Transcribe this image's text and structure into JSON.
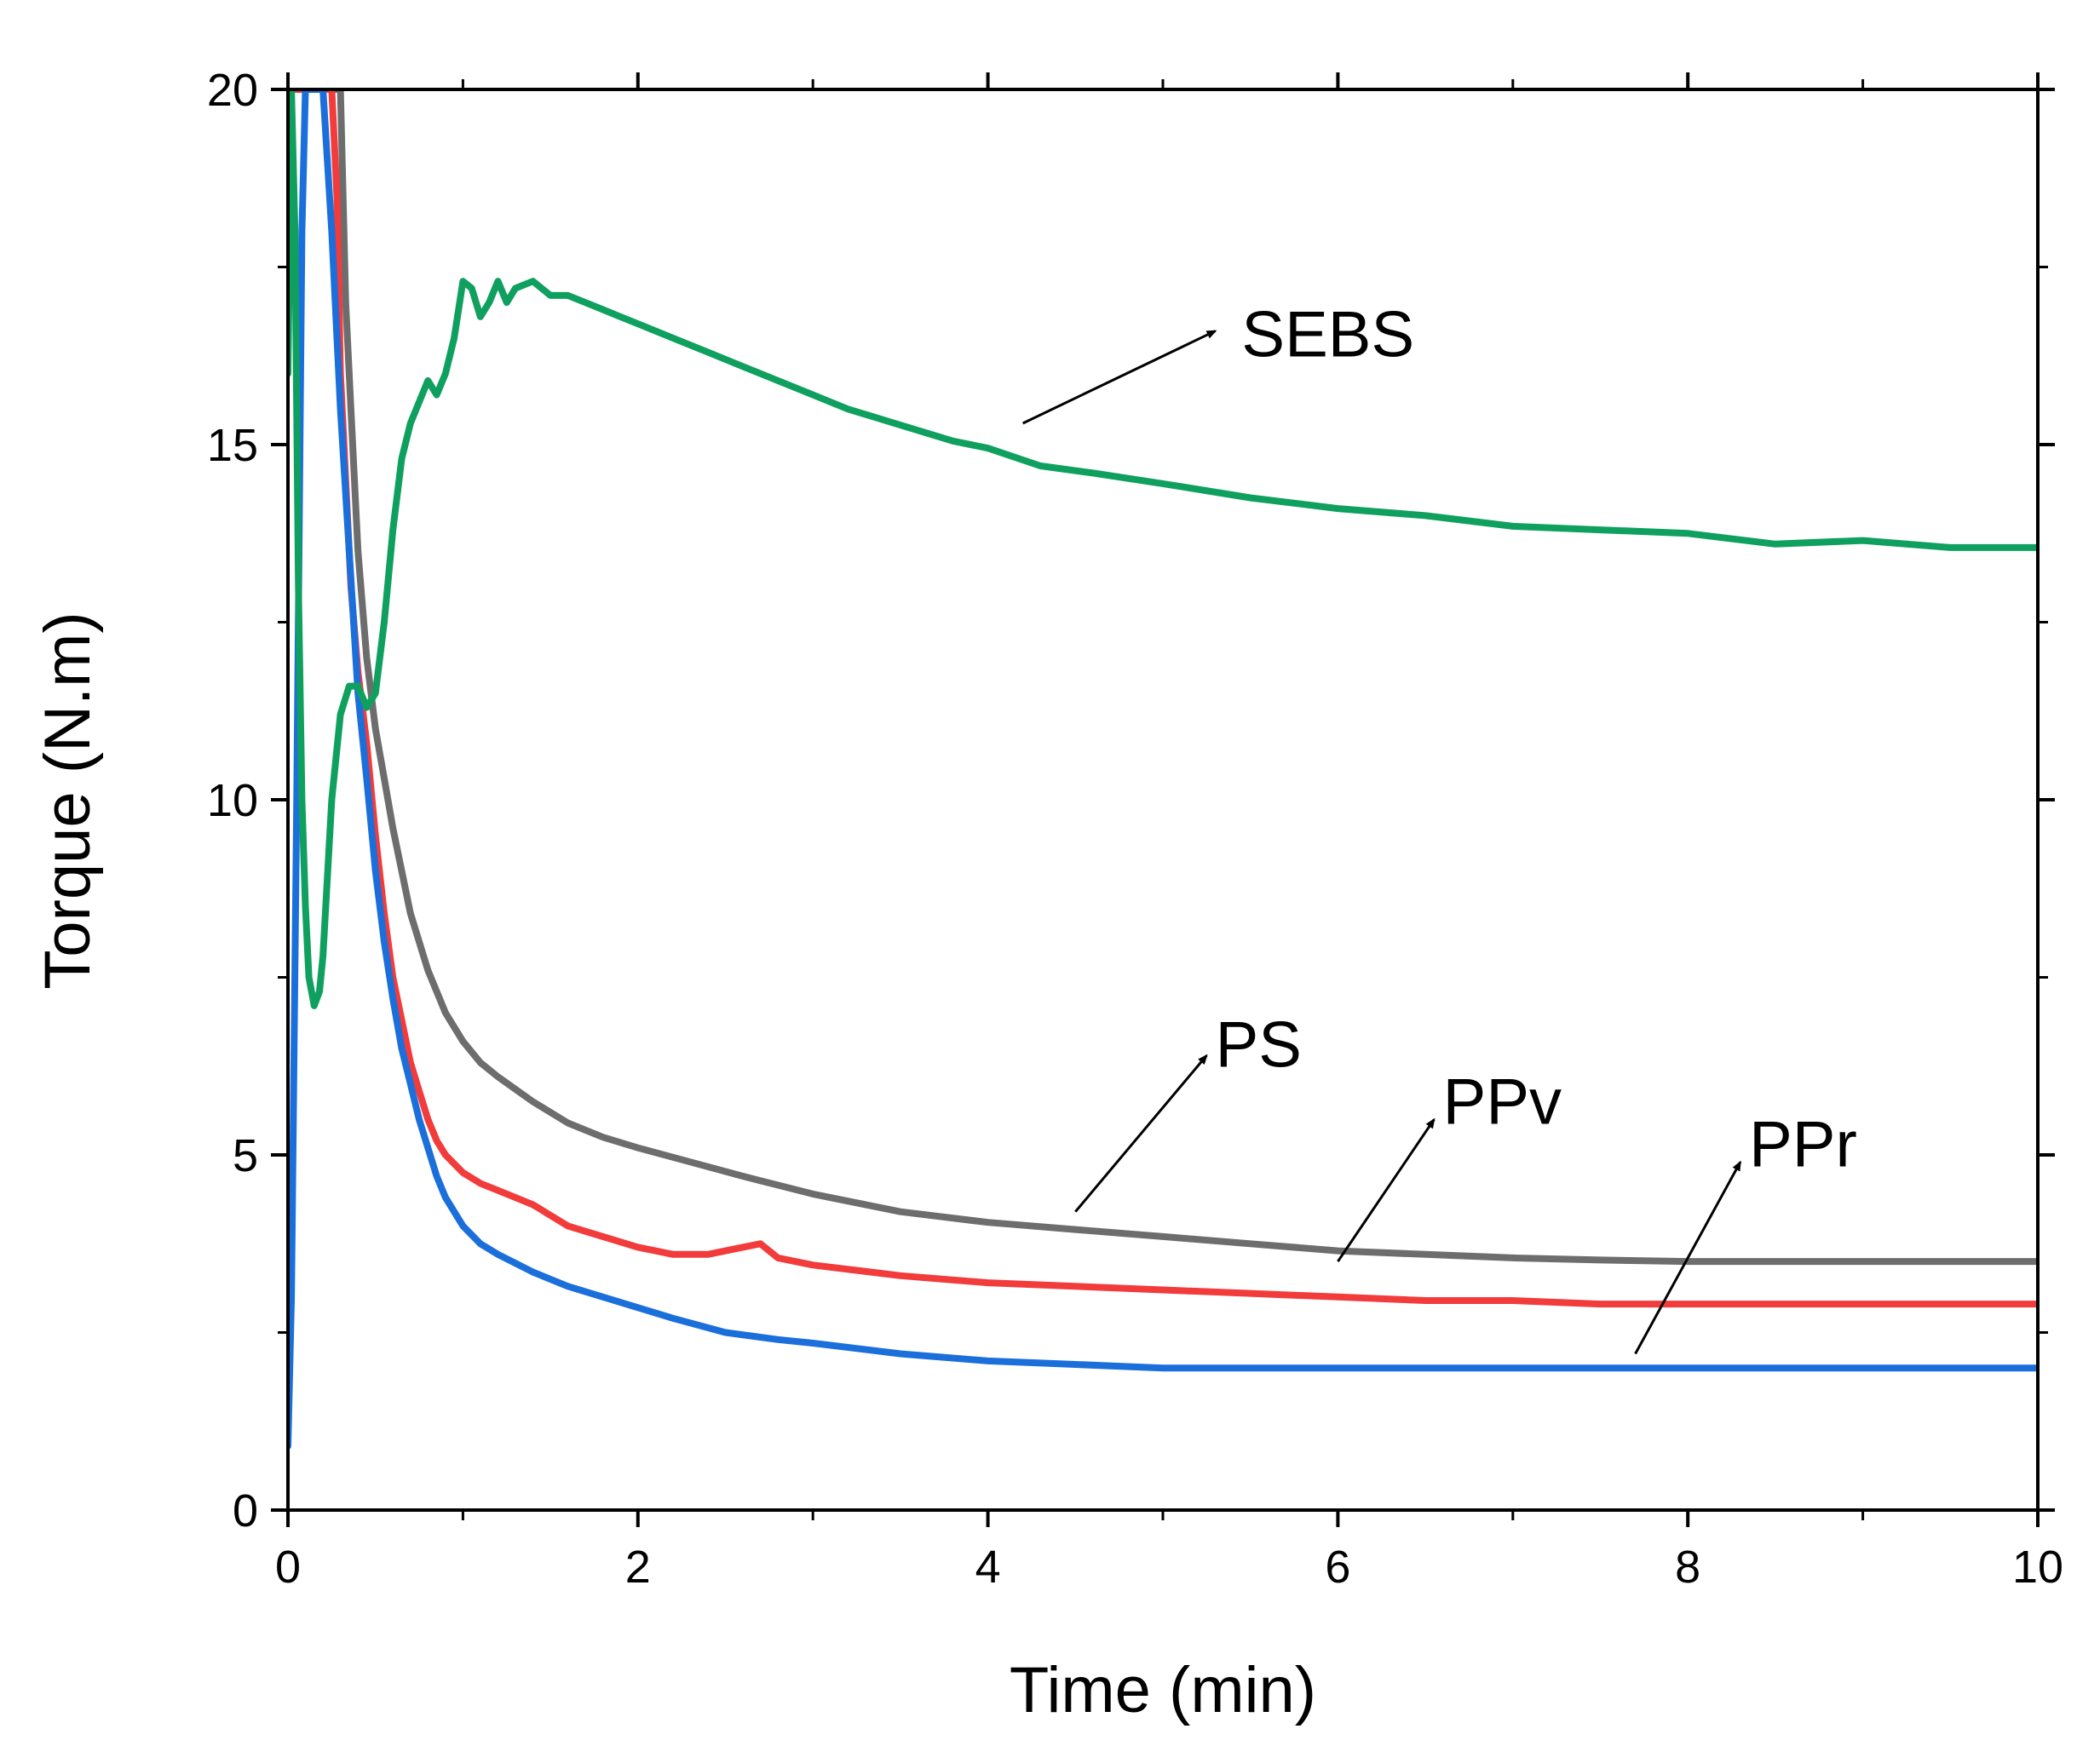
{
  "chart_data": {
    "type": "line",
    "title": "",
    "xlabel": "Time (min)",
    "ylabel": "Torque (N.m)",
    "xlim": [
      0,
      10
    ],
    "ylim": [
      0,
      20
    ],
    "xticks": [
      0,
      2,
      4,
      6,
      8,
      10
    ],
    "yticks": [
      0,
      5,
      10,
      15,
      20
    ],
    "grid": false,
    "legend": "none",
    "series": [
      {
        "name": "SEBS",
        "color": "#0fa05f",
        "x": [
          0.0,
          0.02,
          0.04,
          0.06,
          0.08,
          0.1,
          0.12,
          0.15,
          0.18,
          0.2,
          0.25,
          0.3,
          0.35,
          0.4,
          0.45,
          0.5,
          0.55,
          0.6,
          0.65,
          0.7,
          0.75,
          0.8,
          0.85,
          0.9,
          0.95,
          1.0,
          1.05,
          1.1,
          1.15,
          1.2,
          1.25,
          1.3,
          1.4,
          1.5,
          1.6,
          1.7,
          1.8,
          1.9,
          2.0,
          2.2,
          2.4,
          2.6,
          2.8,
          3.0,
          3.2,
          3.4,
          3.6,
          3.8,
          4.0,
          4.3,
          4.6,
          5.0,
          5.5,
          6.0,
          6.5,
          7.0,
          7.5,
          8.0,
          8.5,
          9.0,
          9.5,
          10.0
        ],
        "values": [
          16.0,
          20.0,
          18.0,
          13.0,
          10.0,
          8.5,
          7.5,
          7.1,
          7.3,
          7.8,
          10.0,
          11.2,
          11.6,
          11.6,
          11.3,
          11.5,
          12.5,
          13.8,
          14.8,
          15.3,
          15.6,
          15.9,
          15.7,
          16.0,
          16.5,
          17.3,
          17.2,
          16.8,
          17.0,
          17.3,
          17.0,
          17.2,
          17.3,
          17.1,
          17.1,
          17.0,
          16.9,
          16.8,
          16.7,
          16.5,
          16.3,
          16.1,
          15.9,
          15.7,
          15.5,
          15.35,
          15.2,
          15.05,
          14.95,
          14.7,
          14.6,
          14.45,
          14.25,
          14.1,
          14.0,
          13.85,
          13.8,
          13.75,
          13.6,
          13.65,
          13.55,
          13.55
        ]
      },
      {
        "name": "PS",
        "color": "#6d6d6d",
        "x": [
          0.0,
          0.05,
          0.1,
          0.15,
          0.2,
          0.25,
          0.3,
          0.33,
          0.36,
          0.4,
          0.45,
          0.5,
          0.55,
          0.6,
          0.65,
          0.7,
          0.8,
          0.9,
          1.0,
          1.1,
          1.2,
          1.4,
          1.6,
          1.8,
          2.0,
          2.3,
          2.6,
          3.0,
          3.5,
          4.0,
          4.5,
          5.0,
          5.5,
          6.0,
          6.5,
          7.0,
          7.5,
          8.0,
          8.5,
          9.0,
          9.5,
          10.0
        ],
        "values": [
          20.0,
          20.0,
          20.0,
          20.0,
          20.0,
          20.0,
          20.0,
          17.0,
          15.5,
          13.5,
          12.0,
          11.0,
          10.3,
          9.6,
          9.0,
          8.4,
          7.6,
          7.0,
          6.6,
          6.3,
          6.1,
          5.75,
          5.45,
          5.25,
          5.1,
          4.9,
          4.7,
          4.45,
          4.2,
          4.05,
          3.95,
          3.85,
          3.75,
          3.65,
          3.6,
          3.55,
          3.52,
          3.5,
          3.5,
          3.5,
          3.5,
          3.5
        ]
      },
      {
        "name": "PPv",
        "color": "#f23b3b",
        "x": [
          0.0,
          0.05,
          0.1,
          0.15,
          0.2,
          0.25,
          0.28,
          0.3,
          0.33,
          0.36,
          0.4,
          0.45,
          0.5,
          0.55,
          0.6,
          0.65,
          0.7,
          0.75,
          0.8,
          0.85,
          0.9,
          1.0,
          1.1,
          1.2,
          1.4,
          1.6,
          1.8,
          2.0,
          2.2,
          2.4,
          2.6,
          2.7,
          2.8,
          3.0,
          3.5,
          4.0,
          4.5,
          5.0,
          5.5,
          6.0,
          6.5,
          7.0,
          7.5,
          8.0,
          8.5,
          9.0,
          9.5,
          10.0
        ],
        "values": [
          20.0,
          20.0,
          20.0,
          20.0,
          20.0,
          20.0,
          18.5,
          16.0,
          14.5,
          13.0,
          11.8,
          10.8,
          9.5,
          8.4,
          7.5,
          6.9,
          6.3,
          5.9,
          5.5,
          5.2,
          5.0,
          4.75,
          4.6,
          4.5,
          4.3,
          4.0,
          3.85,
          3.7,
          3.6,
          3.6,
          3.7,
          3.75,
          3.55,
          3.45,
          3.3,
          3.2,
          3.15,
          3.1,
          3.05,
          3.0,
          2.95,
          2.95,
          2.9,
          2.9,
          2.9,
          2.9,
          2.9,
          2.9
        ]
      },
      {
        "name": "PPr",
        "color": "#1a6fdb",
        "x": [
          0.0,
          0.02,
          0.05,
          0.08,
          0.1,
          0.13,
          0.16,
          0.2,
          0.25,
          0.3,
          0.35,
          0.4,
          0.45,
          0.5,
          0.55,
          0.6,
          0.65,
          0.7,
          0.75,
          0.8,
          0.85,
          0.9,
          1.0,
          1.1,
          1.2,
          1.4,
          1.6,
          1.8,
          2.0,
          2.2,
          2.5,
          2.8,
          3.0,
          3.5,
          4.0,
          4.5,
          5.0,
          6.0,
          7.0,
          8.0,
          9.0,
          10.0
        ],
        "values": [
          0.9,
          3.0,
          10.0,
          18.0,
          20.0,
          20.0,
          20.0,
          20.0,
          18.0,
          15.5,
          13.5,
          11.5,
          10.3,
          9.0,
          8.0,
          7.2,
          6.5,
          6.0,
          5.5,
          5.1,
          4.7,
          4.4,
          4.0,
          3.75,
          3.6,
          3.35,
          3.15,
          3.0,
          2.85,
          2.7,
          2.5,
          2.4,
          2.35,
          2.2,
          2.1,
          2.05,
          2.0,
          2.0,
          2.0,
          2.0,
          2.0,
          2.0
        ]
      }
    ],
    "annotations": [
      {
        "text": "SEBS",
        "series": "SEBS",
        "arrow_from": [
          4.2,
          15.3
        ],
        "arrow_to": [
          5.3,
          16.6
        ],
        "text_at": [
          5.45,
          16.55
        ]
      },
      {
        "text": "PS",
        "series": "PS",
        "arrow_from": [
          4.5,
          4.2
        ],
        "arrow_to": [
          5.25,
          6.4
        ],
        "text_at": [
          5.3,
          6.55
        ]
      },
      {
        "text": "PPv",
        "series": "PPv",
        "arrow_from": [
          6.0,
          3.5
        ],
        "arrow_to": [
          6.55,
          5.5
        ],
        "text_at": [
          6.6,
          5.75
        ]
      },
      {
        "text": "PPr",
        "series": "PPr",
        "arrow_from": [
          7.7,
          2.2
        ],
        "arrow_to": [
          8.3,
          4.9
        ],
        "text_at": [
          8.35,
          5.15
        ]
      }
    ]
  }
}
